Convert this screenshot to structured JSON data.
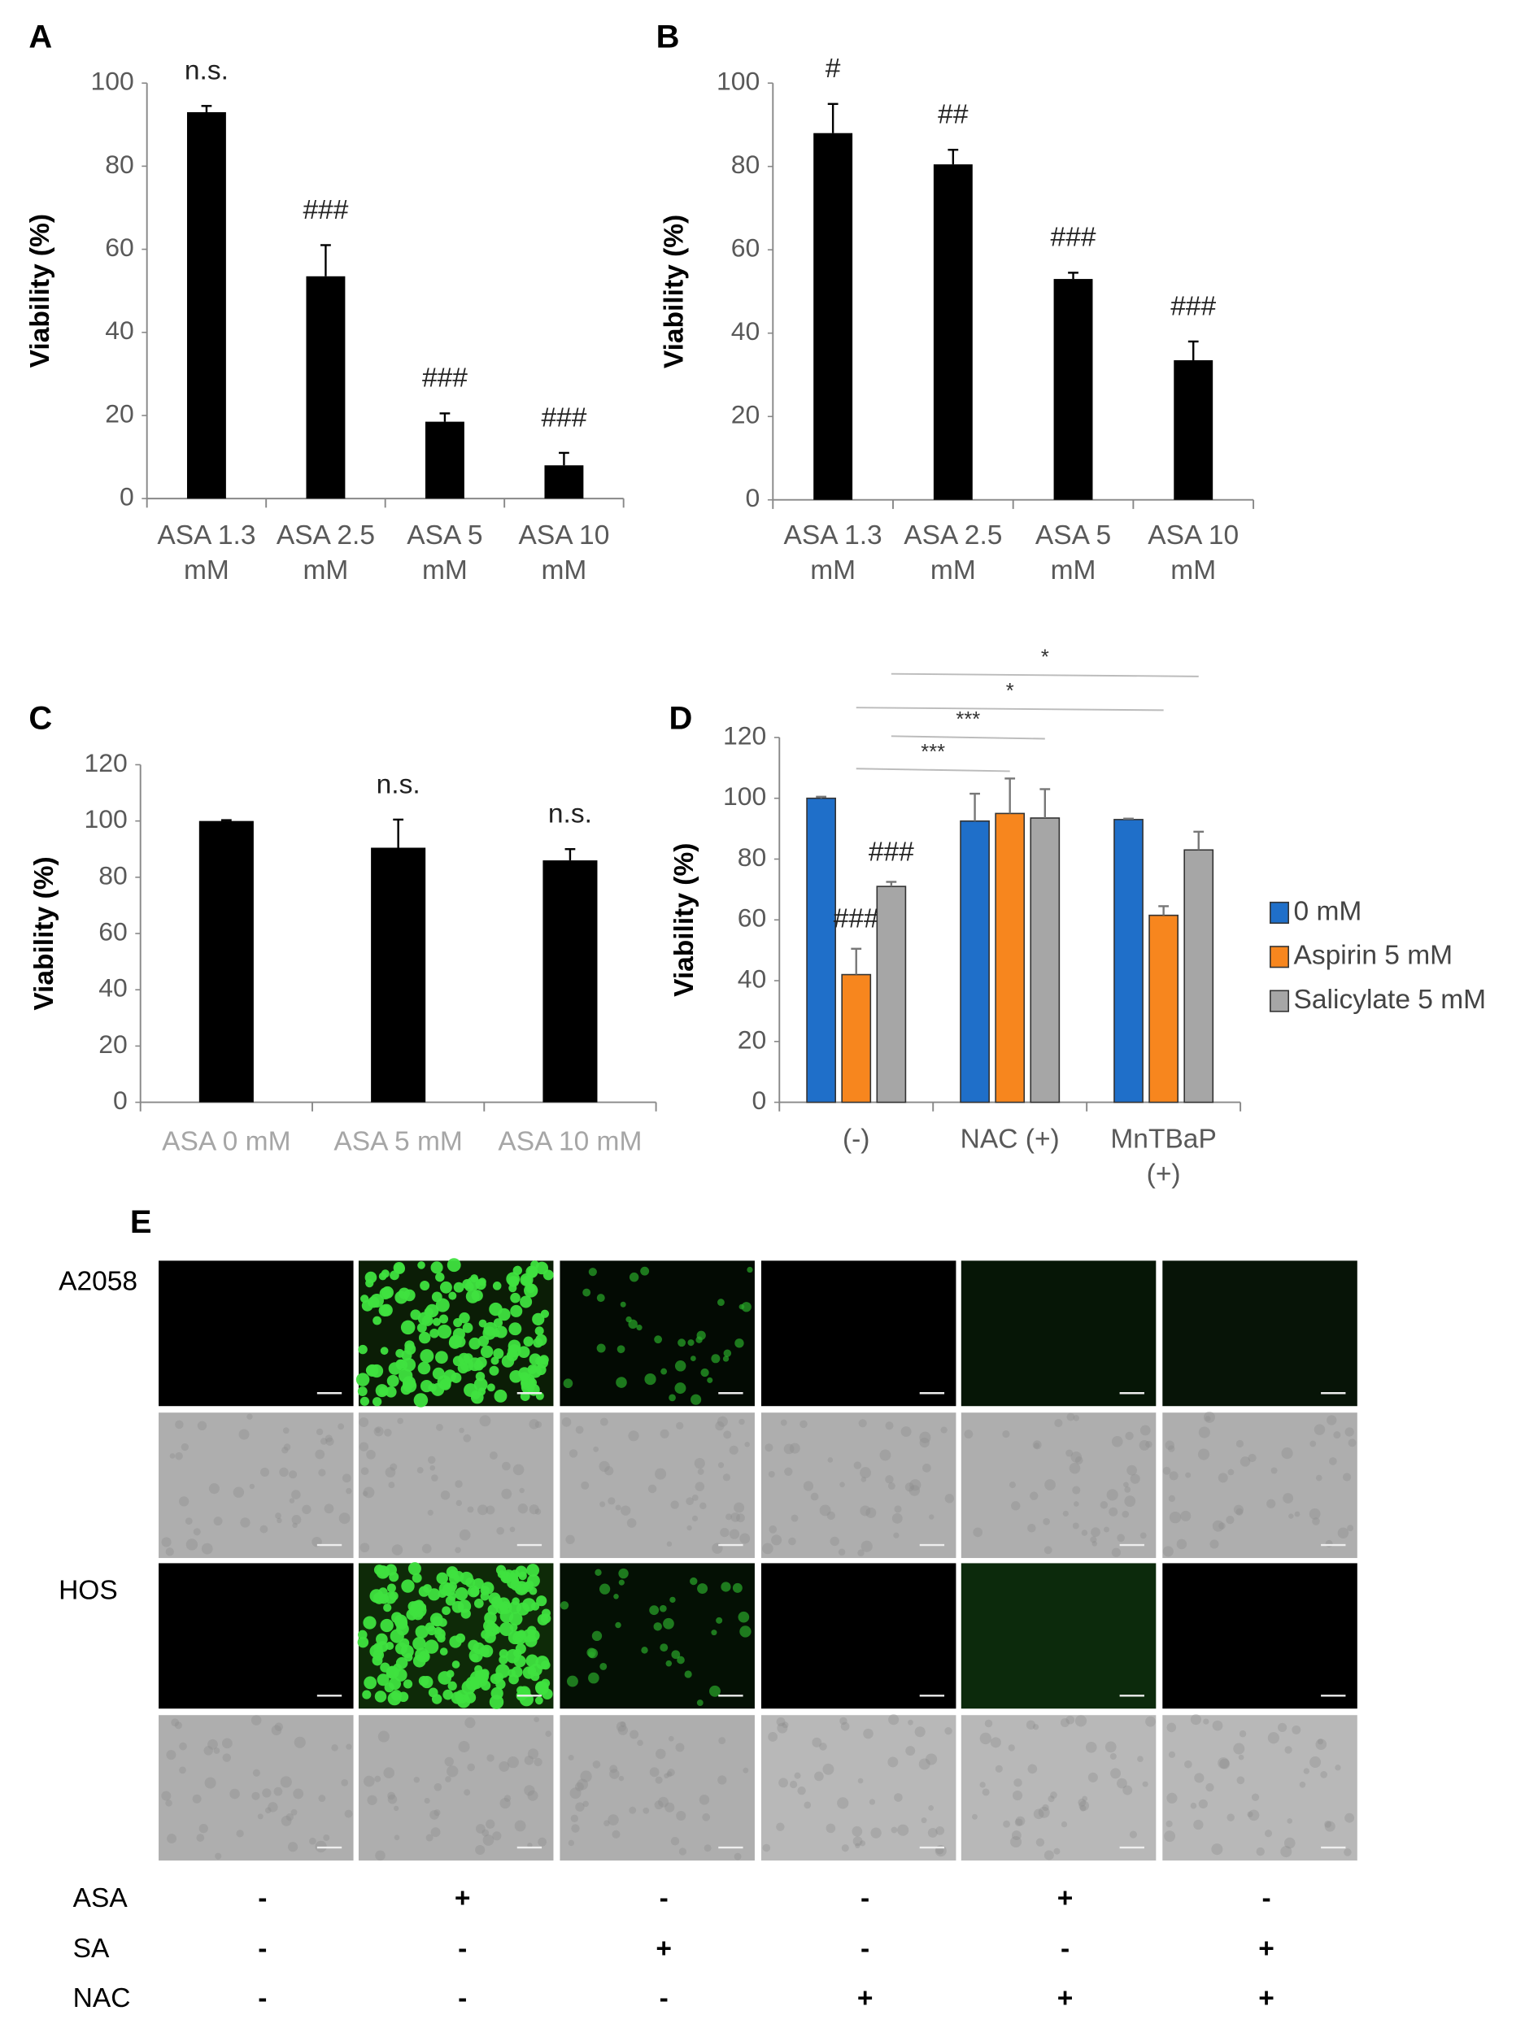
{
  "chart_data": [
    {
      "type": "bar",
      "panel": "A",
      "ylabel": "Viability (%)",
      "categories": [
        "ASA 1.3 mM",
        "ASA 2.5 mM",
        "ASA 5 mM",
        "ASA 10 mM"
      ],
      "values": [
        93,
        53.5,
        18.5,
        8
      ],
      "errors": [
        1.5,
        7.5,
        2,
        3
      ],
      "annotations": [
        "n.s.",
        "###",
        "###",
        "###"
      ],
      "color": "#000000",
      "ylim": [
        0,
        100
      ],
      "yticks": [
        0,
        20,
        40,
        60,
        80,
        100
      ]
    },
    {
      "type": "bar",
      "panel": "B",
      "ylabel": "Viability (%)",
      "categories": [
        "ASA 1.3 mM",
        "ASA 2.5 mM",
        "ASA 5 mM",
        "ASA 10 mM"
      ],
      "values": [
        88,
        80.5,
        53,
        33.5
      ],
      "errors": [
        7,
        3.5,
        1.5,
        4.5
      ],
      "annotations": [
        "#",
        "##",
        "###",
        "###"
      ],
      "color": "#000000",
      "ylim": [
        0,
        100
      ],
      "yticks": [
        0,
        20,
        40,
        60,
        80,
        100
      ]
    },
    {
      "type": "bar",
      "panel": "C",
      "ylabel": "Viability (%)",
      "categories": [
        "ASA 0 mM",
        "ASA 5 mM",
        "ASA 10 mM"
      ],
      "values": [
        100,
        90.5,
        86
      ],
      "errors": [
        0.3,
        10,
        4
      ],
      "annotations": [
        null,
        "n.s.",
        "n.s."
      ],
      "color": "#000000",
      "ylim": [
        0,
        120
      ],
      "yticks": [
        0,
        20,
        40,
        60,
        80,
        100,
        120
      ]
    },
    {
      "type": "grouped_bar",
      "panel": "D",
      "ylabel": "Viability (%)",
      "categories": [
        "(-)",
        "NAC (+)",
        "MnTBaP (+)"
      ],
      "series": [
        {
          "name": "0 mM",
          "color": "#1f6fc9",
          "values": [
            100,
            92.5,
            93
          ],
          "errors": [
            0.5,
            9,
            0.3
          ],
          "annotations": [
            null,
            null,
            null
          ]
        },
        {
          "name": "Aspirin 5 mM",
          "color": "#f7861e",
          "values": [
            42,
            95,
            61.5
          ],
          "errors": [
            8.5,
            11.5,
            3
          ],
          "annotations": [
            "###",
            null,
            null
          ]
        },
        {
          "name": "Salicylate 5 mM",
          "color": "#a6a6a6",
          "values": [
            71,
            93.5,
            83
          ],
          "errors": [
            1.5,
            9.5,
            6
          ],
          "annotations": [
            "###",
            null,
            null
          ]
        }
      ],
      "significance": [
        "*",
        "*",
        "***",
        "***"
      ],
      "legend": "right",
      "ylim": [
        0,
        120
      ],
      "yticks": [
        0,
        20,
        40,
        60,
        80,
        100,
        120
      ]
    }
  ],
  "image_panel": {
    "panel": "E",
    "row_labels": [
      "A2058",
      "HOS"
    ],
    "treatments": [
      {
        "name": "ASA",
        "signs": [
          "-",
          "+",
          "-",
          "-",
          "+",
          "-"
        ]
      },
      {
        "name": "SA",
        "signs": [
          "-",
          "-",
          "+",
          "-",
          "-",
          "+"
        ]
      },
      {
        "name": "NAC",
        "signs": [
          "-",
          "-",
          "-",
          "+",
          "+",
          "+"
        ]
      }
    ]
  }
}
